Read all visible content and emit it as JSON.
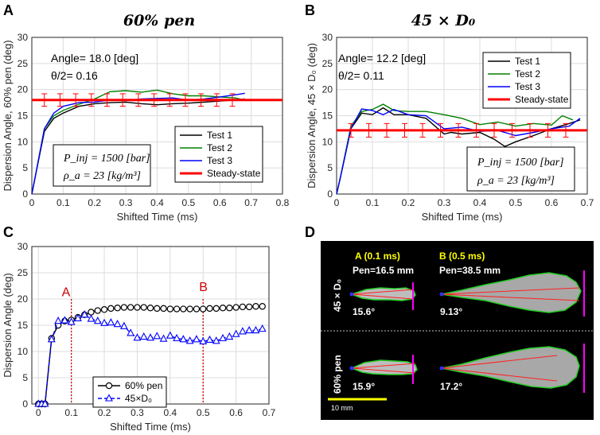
{
  "panels": {
    "A": {
      "letter": "A",
      "title": "60% pen",
      "ylabel": "Dispersion Angle, 60% pen (deg)",
      "xlabel": "Shifted Time (ms)",
      "angle_text": "Angle= 18.0 [deg]",
      "theta_text": "θ/2= 0.16",
      "box_line1": "P_inj = 1500 [bar]",
      "box_line2": "ρ_a = 23 [kg/m³]",
      "legend": [
        "Test 1",
        "Test 2",
        "Test 3",
        "Steady-state"
      ]
    },
    "B": {
      "letter": "B",
      "title": "45 × D₀",
      "ylabel": "Dispersion Angle, 45 × D₀ (deg)",
      "xlabel": "Shifted Time (ms)",
      "angle_text": "Angle= 12.2 [deg]",
      "theta_text": "θ/2= 0.11",
      "box_line1": "P_inj = 1500 [bar]",
      "box_line2": "ρ_a = 23 [kg/m³]",
      "legend": [
        "Test 1",
        "Test 2",
        "Test 3",
        "Steady-state"
      ]
    },
    "C": {
      "letter": "C",
      "ylabel": "Dispersion Angle (deg)",
      "xlabel": "Shifted Time (ms)",
      "marker_a": "A",
      "marker_b": "B",
      "legend": [
        "60% pen",
        "45×D₀"
      ]
    },
    "D": {
      "letter": "D",
      "col_a_title": "A (0.1 ms)",
      "col_b_title": "B (0.5 ms)",
      "pen_a": "Pen=16.5 mm",
      "pen_b": "Pen=38.5 mm",
      "row1_label": "45 × D₀",
      "row2_label": "60% pen",
      "angles": [
        "15.6°",
        "9.13°",
        "15.9°",
        "17.2°"
      ],
      "scale_label": "10 mm"
    }
  },
  "colors": {
    "test1": "#000000",
    "test2": "#008000",
    "test3": "#0000ff",
    "steady": "#ff0000",
    "pen60": "#000000",
    "d45": "#0000ff",
    "marker_line": "#cc0000",
    "image_text_yellow": "#ffff00"
  },
  "chart_data": [
    {
      "id": "A",
      "type": "line",
      "title": "60% pen",
      "xlabel": "Shifted Time (ms)",
      "ylabel": "Dispersion Angle, 60% pen (deg)",
      "xlim": [
        0,
        0.8
      ],
      "ylim": [
        0,
        30
      ],
      "xticks": [
        0,
        0.1,
        0.2,
        0.3,
        0.4,
        0.5,
        0.6,
        0.7,
        0.8
      ],
      "yticks": [
        0,
        5,
        10,
        15,
        20,
        25,
        30
      ],
      "grid": true,
      "series": [
        {
          "name": "Test 1",
          "color": "#000000",
          "x": [
            0,
            0.01,
            0.04,
            0.07,
            0.1,
            0.15,
            0.2,
            0.25,
            0.3,
            0.35,
            0.4,
            0.45,
            0.5,
            0.55,
            0.6,
            0.65,
            0.68
          ],
          "y": [
            0,
            3,
            12,
            14.5,
            15.5,
            16.8,
            17.3,
            17.5,
            17.6,
            17.3,
            17.1,
            17.3,
            17.4,
            17.6,
            17.8,
            18.0,
            18.2
          ]
        },
        {
          "name": "Test 2",
          "color": "#008000",
          "x": [
            0,
            0.01,
            0.04,
            0.07,
            0.1,
            0.15,
            0.2,
            0.25,
            0.3,
            0.35,
            0.4,
            0.45,
            0.5,
            0.55,
            0.6,
            0.65,
            0.67
          ],
          "y": [
            0,
            3,
            12.5,
            15,
            16,
            17.2,
            18.2,
            19.6,
            19.8,
            19.5,
            19.9,
            19.2,
            18.8,
            18.8,
            18.6,
            18.4,
            18.1
          ]
        },
        {
          "name": "Test 3",
          "color": "#0000ff",
          "x": [
            0,
            0.01,
            0.04,
            0.07,
            0.1,
            0.15,
            0.2,
            0.25,
            0.3,
            0.35,
            0.4,
            0.45,
            0.5,
            0.55,
            0.6,
            0.65,
            0.68
          ],
          "y": [
            0,
            3,
            12.5,
            15.5,
            16.8,
            17.5,
            17.6,
            18.0,
            17.9,
            18.2,
            18.3,
            18.4,
            18.0,
            18.2,
            18.6,
            19.0,
            19.3
          ]
        },
        {
          "name": "Steady-state",
          "color": "#ff0000",
          "x": [
            0,
            0.8
          ],
          "y": [
            18.0,
            18.0
          ],
          "error_x": [
            0.04,
            0.09,
            0.14,
            0.19,
            0.24,
            0.29,
            0.34,
            0.39,
            0.44,
            0.49,
            0.54,
            0.59,
            0.64
          ],
          "error": 1.2
        }
      ]
    },
    {
      "id": "B",
      "type": "line",
      "title": "45 × D₀",
      "xlabel": "Shifted Time (ms)",
      "ylabel": "Dispersion Angle, 45 × D₀ (deg)",
      "xlim": [
        0,
        0.7
      ],
      "ylim": [
        0,
        30
      ],
      "xticks": [
        0,
        0.1,
        0.2,
        0.3,
        0.4,
        0.5,
        0.6,
        0.7
      ],
      "yticks": [
        0,
        5,
        10,
        15,
        20,
        25,
        30
      ],
      "grid": true,
      "series": [
        {
          "name": "Test 1",
          "color": "#000000",
          "x": [
            0,
            0.01,
            0.04,
            0.07,
            0.1,
            0.13,
            0.16,
            0.2,
            0.25,
            0.3,
            0.32,
            0.35,
            0.4,
            0.44,
            0.47,
            0.5,
            0.55,
            0.6,
            0.65,
            0.68
          ],
          "y": [
            0,
            3,
            12.5,
            15.5,
            15.2,
            16.5,
            15.2,
            15.2,
            14.5,
            11.5,
            11.8,
            11.5,
            11.8,
            10.5,
            9.1,
            10.0,
            11.2,
            12.5,
            13.5,
            14.2
          ]
        },
        {
          "name": "Test 2",
          "color": "#008000",
          "x": [
            0,
            0.01,
            0.04,
            0.07,
            0.1,
            0.13,
            0.16,
            0.2,
            0.25,
            0.3,
            0.35,
            0.4,
            0.45,
            0.5,
            0.55,
            0.6,
            0.63,
            0.66
          ],
          "y": [
            0,
            3,
            13,
            15.8,
            16.2,
            17.2,
            16.0,
            15.8,
            15.8,
            15.2,
            14.5,
            13.3,
            13.8,
            13.0,
            13.5,
            13.2,
            15.0,
            14.2
          ]
        },
        {
          "name": "Test 3",
          "color": "#0000ff",
          "x": [
            0,
            0.01,
            0.04,
            0.07,
            0.1,
            0.13,
            0.16,
            0.2,
            0.25,
            0.3,
            0.35,
            0.4,
            0.45,
            0.5,
            0.55,
            0.6,
            0.65,
            0.68
          ],
          "y": [
            0,
            3,
            12.5,
            16.3,
            16.0,
            15.2,
            16.2,
            15.2,
            15.0,
            12.5,
            12.8,
            12.0,
            12.2,
            11.2,
            11.8,
            12.5,
            13.0,
            14.5
          ]
        },
        {
          "name": "Steady-state",
          "color": "#ff0000",
          "x": [
            0,
            0.7
          ],
          "y": [
            12.2,
            12.2
          ],
          "error_x": [
            0.04,
            0.09,
            0.14,
            0.19,
            0.24,
            0.29,
            0.34,
            0.39,
            0.44,
            0.49,
            0.54,
            0.59,
            0.64
          ],
          "error": 1.3
        }
      ]
    },
    {
      "id": "C",
      "type": "line",
      "xlabel": "Shifted Time (ms)",
      "ylabel": "Dispersion Angle (deg)",
      "xlim": [
        -0.02,
        0.7
      ],
      "ylim": [
        0,
        30
      ],
      "xticks": [
        0,
        0.1,
        0.2,
        0.3,
        0.4,
        0.5,
        0.6,
        0.7
      ],
      "yticks": [
        0,
        5,
        10,
        15,
        20,
        25,
        30
      ],
      "grid": true,
      "vlines": [
        0.1,
        0.5
      ],
      "series": [
        {
          "name": "60% pen",
          "color": "#000000",
          "marker": "circle",
          "x": [
            0,
            0.01,
            0.02,
            0.04,
            0.06,
            0.08,
            0.1,
            0.12,
            0.14,
            0.16,
            0.18,
            0.2,
            0.22,
            0.24,
            0.26,
            0.28,
            0.3,
            0.32,
            0.34,
            0.36,
            0.38,
            0.4,
            0.42,
            0.44,
            0.46,
            0.48,
            0.5,
            0.52,
            0.54,
            0.56,
            0.58,
            0.6,
            0.62,
            0.64,
            0.66,
            0.68
          ],
          "y": [
            0,
            0,
            0,
            12.5,
            15,
            15.8,
            16,
            16.5,
            17,
            17.5,
            17.8,
            18,
            18.2,
            18.3,
            18.4,
            18.4,
            18.4,
            18.4,
            18.3,
            18.2,
            18.2,
            18.1,
            18.1,
            18.1,
            18.1,
            18.1,
            18.1,
            18.2,
            18.2,
            18.3,
            18.3,
            18.4,
            18.5,
            18.5,
            18.6,
            18.6
          ]
        },
        {
          "name": "45×D₀",
          "color": "#0000ff",
          "marker": "triangle",
          "x": [
            0,
            0.01,
            0.02,
            0.04,
            0.06,
            0.08,
            0.1,
            0.12,
            0.14,
            0.16,
            0.18,
            0.2,
            0.22,
            0.24,
            0.26,
            0.28,
            0.3,
            0.32,
            0.34,
            0.36,
            0.38,
            0.4,
            0.42,
            0.44,
            0.46,
            0.48,
            0.5,
            0.52,
            0.54,
            0.56,
            0.58,
            0.6,
            0.62,
            0.64,
            0.66,
            0.68
          ],
          "y": [
            0,
            0,
            0,
            12.3,
            15.8,
            15.9,
            15.6,
            16.3,
            17.0,
            16.2,
            15.8,
            15.4,
            15.5,
            15.2,
            14.8,
            13.5,
            12.6,
            12.8,
            12.6,
            12.9,
            12.4,
            13.0,
            12.5,
            12.3,
            12.0,
            12.3,
            11.9,
            12.2,
            12.0,
            12.5,
            12.8,
            13.3,
            13.8,
            14.0,
            14.0,
            14.3
          ]
        }
      ]
    }
  ]
}
